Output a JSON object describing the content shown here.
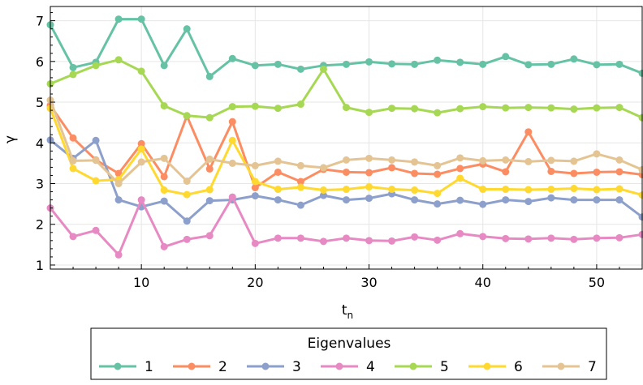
{
  "chart_data": {
    "type": "line",
    "title": "",
    "xlabel": "t",
    "xlabel_subscript": "n",
    "ylabel": "γ",
    "xlim": [
      2,
      54
    ],
    "ylim": [
      0.9,
      7.35
    ],
    "x_ticks": [
      10,
      20,
      30,
      40,
      50
    ],
    "y_ticks": [
      1,
      2,
      3,
      4,
      5,
      6,
      7
    ],
    "grid": true,
    "legend": {
      "title": "Eigenvalues",
      "position": "bottom"
    },
    "x": [
      2,
      4,
      6,
      8,
      10,
      12,
      14,
      16,
      18,
      20,
      22,
      24,
      26,
      28,
      30,
      32,
      34,
      36,
      38,
      40,
      42,
      44,
      46,
      48,
      50,
      52,
      54
    ],
    "series": [
      {
        "name": "1",
        "color": "#66c2a5",
        "values": [
          6.9,
          5.85,
          5.98,
          7.04,
          7.04,
          5.9,
          6.8,
          5.63,
          6.07,
          5.9,
          5.93,
          5.81,
          5.9,
          5.93,
          5.99,
          5.94,
          5.93,
          6.03,
          5.98,
          5.93,
          6.12,
          5.92,
          5.93,
          6.06,
          5.92,
          5.93,
          5.71
        ]
      },
      {
        "name": "2",
        "color": "#fc8d62",
        "values": [
          4.92,
          4.12,
          3.58,
          3.25,
          3.98,
          3.17,
          4.66,
          3.36,
          4.52,
          2.9,
          3.28,
          3.05,
          3.35,
          3.28,
          3.27,
          3.39,
          3.25,
          3.23,
          3.37,
          3.48,
          3.29,
          4.27,
          3.3,
          3.25,
          3.28,
          3.29,
          3.22
        ]
      },
      {
        "name": "3",
        "color": "#8da0cb",
        "values": [
          4.07,
          3.62,
          4.06,
          2.6,
          2.43,
          2.57,
          2.08,
          2.58,
          2.6,
          2.7,
          2.6,
          2.47,
          2.71,
          2.6,
          2.64,
          2.75,
          2.6,
          2.5,
          2.59,
          2.49,
          2.6,
          2.56,
          2.65,
          2.6,
          2.6,
          2.6,
          2.18
        ]
      },
      {
        "name": "4",
        "color": "#e78ac3",
        "values": [
          2.4,
          1.7,
          1.85,
          1.25,
          2.6,
          1.45,
          1.63,
          1.72,
          2.67,
          1.53,
          1.66,
          1.66,
          1.58,
          1.66,
          1.6,
          1.59,
          1.69,
          1.61,
          1.77,
          1.7,
          1.65,
          1.64,
          1.66,
          1.63,
          1.66,
          1.67,
          1.75
        ]
      },
      {
        "name": "5",
        "color": "#a6d854",
        "values": [
          5.45,
          5.68,
          5.9,
          6.04,
          5.76,
          4.91,
          4.67,
          4.62,
          4.89,
          4.9,
          4.85,
          4.95,
          5.81,
          4.87,
          4.75,
          4.85,
          4.84,
          4.74,
          4.84,
          4.89,
          4.86,
          4.87,
          4.86,
          4.83,
          4.86,
          4.87,
          4.62
        ]
      },
      {
        "name": "6",
        "color": "#ffd92f",
        "values": [
          4.85,
          3.37,
          3.07,
          3.1,
          3.85,
          2.84,
          2.73,
          2.85,
          4.06,
          3.05,
          2.86,
          2.91,
          2.84,
          2.86,
          2.92,
          2.86,
          2.84,
          2.76,
          3.13,
          2.86,
          2.86,
          2.85,
          2.86,
          2.88,
          2.85,
          2.87,
          2.72
        ]
      },
      {
        "name": "7",
        "color": "#e5c494",
        "values": [
          5.05,
          3.56,
          3.57,
          3.0,
          3.53,
          3.62,
          3.06,
          3.6,
          3.5,
          3.44,
          3.55,
          3.44,
          3.39,
          3.58,
          3.62,
          3.58,
          3.53,
          3.44,
          3.63,
          3.56,
          3.58,
          3.54,
          3.57,
          3.55,
          3.73,
          3.58,
          3.34
        ]
      }
    ]
  }
}
